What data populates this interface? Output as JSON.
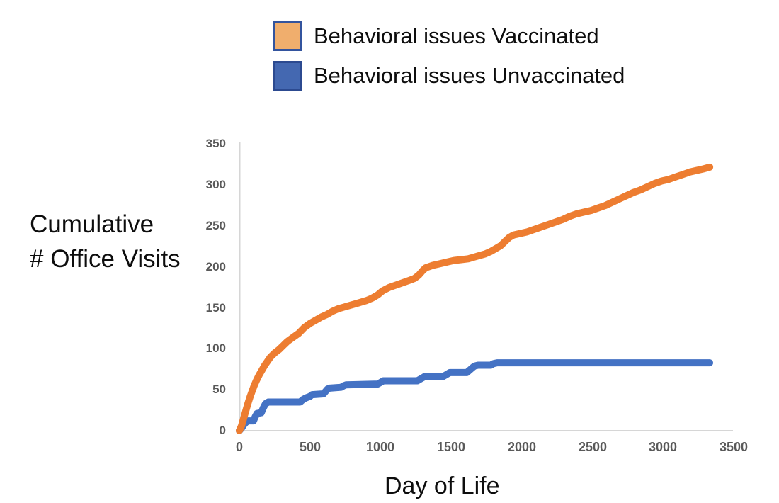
{
  "figure": {
    "background": "#FFFFFF",
    "text_color": "#0D0D0D",
    "axis_line_color": "#D6D6D6",
    "tick_label_color": "#595959"
  },
  "legend": {
    "items": [
      {
        "label": "Behavioral issues Vaccinated",
        "swatch_fill": "#F0AE6D",
        "swatch_border": "#33549E"
      },
      {
        "label": "Behavioral issues Unvaccinated",
        "swatch_fill": "#4468B1",
        "swatch_border": "#2C4A90"
      }
    ]
  },
  "chart_data": {
    "type": "line",
    "title": "",
    "xlabel": "Day of Life",
    "ylabel": "Cumulative # Office Visits",
    "ylabel_lines": [
      "Cumulative",
      "# Office Visits"
    ],
    "xlim": [
      0,
      3500
    ],
    "ylim": [
      0,
      350
    ],
    "grid": false,
    "legend_position": "top",
    "line_width": 10,
    "x_ticks": [
      0,
      500,
      1000,
      1500,
      2000,
      2500,
      3000,
      3500
    ],
    "y_ticks": [
      0,
      50,
      100,
      150,
      200,
      250,
      300,
      350
    ],
    "x_tick_labels": [
      "0",
      "500",
      "1000",
      "1500",
      "2000",
      "2500",
      "3000",
      "3500"
    ],
    "y_tick_labels_top_down": [
      "350",
      "300",
      "250",
      "200",
      "150",
      "100",
      "50",
      "0"
    ],
    "series": [
      {
        "name": "Behavioral issues Vaccinated",
        "color": "#ED7D31",
        "points": [
          [
            0,
            0
          ],
          [
            15,
            6
          ],
          [
            30,
            15
          ],
          [
            45,
            24
          ],
          [
            60,
            33
          ],
          [
            75,
            41
          ],
          [
            90,
            48
          ],
          [
            105,
            55
          ],
          [
            120,
            61
          ],
          [
            140,
            68
          ],
          [
            160,
            74
          ],
          [
            180,
            80
          ],
          [
            200,
            85
          ],
          [
            220,
            90
          ],
          [
            250,
            95
          ],
          [
            280,
            99
          ],
          [
            310,
            104
          ],
          [
            340,
            109
          ],
          [
            380,
            114
          ],
          [
            420,
            119
          ],
          [
            460,
            126
          ],
          [
            500,
            131
          ],
          [
            540,
            135
          ],
          [
            580,
            139
          ],
          [
            620,
            142
          ],
          [
            660,
            146
          ],
          [
            700,
            149
          ],
          [
            740,
            151
          ],
          [
            780,
            153
          ],
          [
            820,
            155
          ],
          [
            860,
            157
          ],
          [
            900,
            159
          ],
          [
            940,
            162
          ],
          [
            980,
            166
          ],
          [
            1015,
            171
          ],
          [
            1060,
            175
          ],
          [
            1110,
            178
          ],
          [
            1160,
            181
          ],
          [
            1210,
            184
          ],
          [
            1240,
            186
          ],
          [
            1270,
            190
          ],
          [
            1300,
            196
          ],
          [
            1320,
            199
          ],
          [
            1370,
            202
          ],
          [
            1420,
            204
          ],
          [
            1470,
            206
          ],
          [
            1520,
            208
          ],
          [
            1570,
            209
          ],
          [
            1620,
            210
          ],
          [
            1660,
            212
          ],
          [
            1700,
            214
          ],
          [
            1740,
            216
          ],
          [
            1780,
            219
          ],
          [
            1820,
            223
          ],
          [
            1850,
            226
          ],
          [
            1880,
            231
          ],
          [
            1910,
            236
          ],
          [
            1940,
            239
          ],
          [
            1990,
            241
          ],
          [
            2040,
            243
          ],
          [
            2090,
            246
          ],
          [
            2140,
            249
          ],
          [
            2190,
            252
          ],
          [
            2240,
            255
          ],
          [
            2290,
            258
          ],
          [
            2340,
            262
          ],
          [
            2390,
            265
          ],
          [
            2440,
            267
          ],
          [
            2490,
            269
          ],
          [
            2540,
            272
          ],
          [
            2590,
            275
          ],
          [
            2640,
            279
          ],
          [
            2690,
            283
          ],
          [
            2740,
            287
          ],
          [
            2790,
            291
          ],
          [
            2840,
            294
          ],
          [
            2890,
            298
          ],
          [
            2940,
            302
          ],
          [
            2990,
            305
          ],
          [
            3040,
            307
          ],
          [
            3090,
            310
          ],
          [
            3140,
            313
          ],
          [
            3190,
            316
          ],
          [
            3240,
            318
          ],
          [
            3290,
            320
          ],
          [
            3330,
            322
          ]
        ]
      },
      {
        "name": "Behavioral issues Unvaccinated",
        "color": "#4472C4",
        "points": [
          [
            0,
            0
          ],
          [
            15,
            3
          ],
          [
            30,
            7
          ],
          [
            45,
            10
          ],
          [
            60,
            12
          ],
          [
            100,
            12
          ],
          [
            112,
            17
          ],
          [
            125,
            21
          ],
          [
            155,
            22
          ],
          [
            170,
            28
          ],
          [
            185,
            33
          ],
          [
            205,
            35
          ],
          [
            430,
            35
          ],
          [
            450,
            38
          ],
          [
            470,
            40
          ],
          [
            500,
            42
          ],
          [
            515,
            44
          ],
          [
            595,
            45
          ],
          [
            610,
            48
          ],
          [
            625,
            51
          ],
          [
            640,
            52
          ],
          [
            720,
            53
          ],
          [
            740,
            55
          ],
          [
            755,
            56
          ],
          [
            980,
            57
          ],
          [
            1000,
            59
          ],
          [
            1020,
            61
          ],
          [
            1260,
            61
          ],
          [
            1280,
            63
          ],
          [
            1300,
            65
          ],
          [
            1310,
            66
          ],
          [
            1440,
            66
          ],
          [
            1460,
            68
          ],
          [
            1480,
            70
          ],
          [
            1490,
            71
          ],
          [
            1610,
            71
          ],
          [
            1630,
            74
          ],
          [
            1650,
            77
          ],
          [
            1665,
            79
          ],
          [
            1690,
            80
          ],
          [
            1780,
            80
          ],
          [
            1800,
            82
          ],
          [
            1825,
            83
          ],
          [
            3330,
            83
          ]
        ]
      }
    ]
  }
}
